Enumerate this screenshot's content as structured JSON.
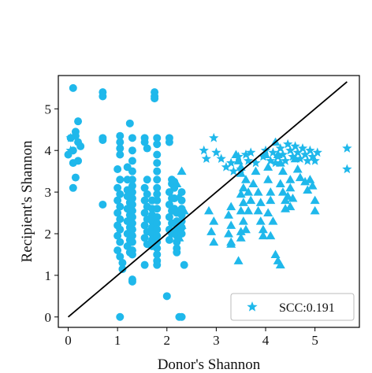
{
  "chart_data": {
    "type": "scatter",
    "xlabel": "Donor's Shannon",
    "ylabel": "Recipient's Shannon",
    "xlim": [
      -0.2,
      5.9
    ],
    "ylim": [
      -0.25,
      5.8
    ],
    "xticks": [
      0,
      1,
      2,
      3,
      4,
      5
    ],
    "yticks": [
      0,
      1,
      2,
      3,
      4,
      5
    ],
    "legend": {
      "label": "SCC:0.191",
      "marker": "star",
      "placement": "bottom-right"
    },
    "fit_line": {
      "x": [
        0,
        5.65
      ],
      "y": [
        0,
        5.65
      ],
      "color": "#000000"
    },
    "color": "#1fb8eb",
    "series": [
      {
        "marker": "circle",
        "points": [
          [
            0.1,
            5.5
          ],
          [
            0.1,
            3.1
          ],
          [
            0.15,
            3.35
          ],
          [
            0.2,
            4.7
          ],
          [
            0.15,
            4.45
          ],
          [
            0.05,
            4.3
          ],
          [
            0.2,
            4.2
          ],
          [
            0.1,
            4.0
          ],
          [
            0.0,
            3.9
          ],
          [
            0.2,
            3.75
          ],
          [
            0.15,
            4.35
          ],
          [
            0.25,
            4.1
          ],
          [
            0.1,
            3.7
          ],
          [
            0.7,
            5.4
          ],
          [
            0.7,
            5.3
          ],
          [
            0.7,
            4.3
          ],
          [
            0.7,
            4.25
          ],
          [
            0.7,
            2.7
          ],
          [
            1.05,
            4.35
          ],
          [
            1.05,
            4.2
          ],
          [
            1.05,
            4.05
          ],
          [
            1.05,
            3.9
          ],
          [
            1.0,
            3.55
          ],
          [
            1.05,
            3.3
          ],
          [
            1.0,
            3.1
          ],
          [
            1.05,
            2.95
          ],
          [
            1.0,
            2.8
          ],
          [
            1.05,
            2.65
          ],
          [
            1.0,
            2.5
          ],
          [
            1.05,
            2.35
          ],
          [
            1.0,
            2.2
          ],
          [
            1.05,
            2.1
          ],
          [
            1.0,
            1.95
          ],
          [
            1.05,
            1.8
          ],
          [
            1.0,
            1.6
          ],
          [
            1.05,
            1.45
          ],
          [
            1.1,
            1.3
          ],
          [
            1.1,
            1.15
          ],
          [
            1.05,
            0.0
          ],
          [
            1.2,
            3.6
          ],
          [
            1.2,
            3.3
          ],
          [
            1.2,
            3.05
          ],
          [
            1.2,
            2.9
          ],
          [
            1.25,
            2.75
          ],
          [
            1.2,
            2.6
          ],
          [
            1.25,
            2.45
          ],
          [
            1.2,
            2.3
          ],
          [
            1.25,
            2.15
          ],
          [
            1.2,
            2.0
          ],
          [
            1.25,
            1.85
          ],
          [
            1.2,
            1.7
          ],
          [
            1.25,
            1.55
          ],
          [
            1.25,
            4.65
          ],
          [
            1.3,
            4.3
          ],
          [
            1.3,
            4.0
          ],
          [
            1.3,
            3.75
          ],
          [
            1.3,
            3.5
          ],
          [
            1.3,
            3.3
          ],
          [
            1.3,
            3.15
          ],
          [
            1.3,
            3.0
          ],
          [
            1.3,
            2.85
          ],
          [
            1.3,
            2.7
          ],
          [
            1.3,
            2.55
          ],
          [
            1.3,
            2.4
          ],
          [
            1.3,
            2.25
          ],
          [
            1.3,
            2.1
          ],
          [
            1.3,
            1.95
          ],
          [
            1.3,
            1.8
          ],
          [
            1.3,
            1.6
          ],
          [
            1.3,
            1.5
          ],
          [
            1.3,
            0.9
          ],
          [
            1.3,
            0.85
          ],
          [
            1.55,
            4.3
          ],
          [
            1.55,
            4.2
          ],
          [
            1.6,
            4.05
          ],
          [
            1.6,
            3.3
          ],
          [
            1.55,
            3.1
          ],
          [
            1.6,
            2.95
          ],
          [
            1.55,
            2.8
          ],
          [
            1.6,
            2.65
          ],
          [
            1.55,
            2.5
          ],
          [
            1.6,
            2.35
          ],
          [
            1.55,
            2.2
          ],
          [
            1.6,
            2.05
          ],
          [
            1.55,
            1.9
          ],
          [
            1.6,
            1.75
          ],
          [
            1.55,
            1.25
          ],
          [
            1.7,
            2.8
          ],
          [
            1.7,
            2.6
          ],
          [
            1.7,
            2.45
          ],
          [
            1.7,
            2.3
          ],
          [
            1.7,
            2.15
          ],
          [
            1.7,
            2.0
          ],
          [
            1.7,
            1.85
          ],
          [
            1.7,
            1.7
          ],
          [
            1.75,
            5.4
          ],
          [
            1.75,
            5.3
          ],
          [
            1.75,
            5.25
          ],
          [
            1.8,
            4.3
          ],
          [
            1.8,
            4.15
          ],
          [
            1.8,
            3.9
          ],
          [
            1.8,
            3.7
          ],
          [
            1.8,
            3.5
          ],
          [
            1.8,
            3.3
          ],
          [
            1.8,
            3.1
          ],
          [
            1.8,
            2.95
          ],
          [
            1.8,
            2.8
          ],
          [
            1.8,
            2.6
          ],
          [
            1.8,
            2.4
          ],
          [
            1.8,
            2.25
          ],
          [
            1.8,
            2.1
          ],
          [
            1.8,
            1.95
          ],
          [
            1.8,
            1.8
          ],
          [
            1.8,
            1.65
          ],
          [
            1.8,
            1.5
          ],
          [
            1.8,
            1.35
          ],
          [
            1.8,
            1.25
          ],
          [
            2.05,
            4.3
          ],
          [
            2.05,
            4.2
          ],
          [
            2.1,
            3.3
          ],
          [
            2.1,
            3.2
          ],
          [
            2.05,
            3.0
          ],
          [
            2.1,
            2.85
          ],
          [
            2.05,
            2.7
          ],
          [
            2.1,
            2.55
          ],
          [
            2.05,
            2.4
          ],
          [
            2.1,
            2.25
          ],
          [
            2.05,
            2.1
          ],
          [
            2.1,
            2.0
          ],
          [
            2.05,
            1.85
          ],
          [
            2.15,
            3.25
          ],
          [
            2.15,
            3.1
          ],
          [
            2.15,
            2.85
          ],
          [
            2.15,
            2.6
          ],
          [
            2.2,
            2.5
          ],
          [
            2.2,
            2.3
          ],
          [
            2.2,
            2.2
          ],
          [
            2.2,
            2.1
          ],
          [
            2.2,
            1.95
          ],
          [
            2.2,
            1.8
          ],
          [
            2.2,
            1.65
          ],
          [
            2.2,
            1.55
          ],
          [
            2.3,
            3.0
          ],
          [
            2.3,
            2.8
          ],
          [
            2.3,
            2.6
          ],
          [
            2.3,
            2.45
          ],
          [
            2.3,
            2.3
          ],
          [
            2.3,
            2.15
          ],
          [
            2.3,
            2.0
          ],
          [
            2.35,
            1.25
          ],
          [
            2.25,
            0.0
          ],
          [
            2.3,
            0.0
          ],
          [
            2.0,
            0.5
          ]
        ]
      },
      {
        "marker": "triangle",
        "points": [
          [
            2.3,
            3.5
          ],
          [
            2.2,
            3.2
          ],
          [
            2.25,
            2.9
          ],
          [
            2.35,
            2.55
          ],
          [
            2.3,
            2.2
          ],
          [
            2.25,
            1.9
          ],
          [
            2.85,
            2.55
          ],
          [
            2.95,
            2.3
          ],
          [
            2.9,
            2.05
          ],
          [
            2.95,
            1.8
          ],
          [
            3.3,
            2.65
          ],
          [
            3.25,
            2.45
          ],
          [
            3.3,
            2.2
          ],
          [
            3.25,
            2.0
          ],
          [
            3.3,
            1.8
          ],
          [
            3.3,
            1.75
          ],
          [
            3.4,
            3.9
          ],
          [
            3.45,
            3.75
          ],
          [
            3.5,
            3.6
          ],
          [
            3.5,
            3.45
          ],
          [
            3.55,
            3.1
          ],
          [
            3.5,
            2.95
          ],
          [
            3.55,
            2.75
          ],
          [
            3.5,
            2.55
          ],
          [
            3.55,
            2.3
          ],
          [
            3.5,
            2.05
          ],
          [
            3.5,
            1.9
          ],
          [
            3.45,
            1.35
          ],
          [
            3.6,
            3.3
          ],
          [
            3.65,
            3.0
          ],
          [
            3.7,
            2.8
          ],
          [
            3.65,
            2.55
          ],
          [
            3.6,
            2.1
          ],
          [
            3.8,
            3.5
          ],
          [
            3.75,
            3.2
          ],
          [
            3.85,
            3.0
          ],
          [
            3.9,
            2.75
          ],
          [
            3.85,
            2.55
          ],
          [
            3.9,
            2.3
          ],
          [
            3.95,
            2.1
          ],
          [
            3.95,
            1.95
          ],
          [
            4.0,
            3.9
          ],
          [
            4.05,
            3.6
          ],
          [
            4.05,
            3.3
          ],
          [
            4.1,
            3.0
          ],
          [
            4.1,
            2.8
          ],
          [
            4.05,
            2.5
          ],
          [
            4.15,
            2.3
          ],
          [
            4.1,
            1.95
          ],
          [
            4.2,
            1.5
          ],
          [
            4.25,
            1.35
          ],
          [
            4.3,
            1.25
          ],
          [
            4.2,
            4.2
          ],
          [
            4.25,
            3.9
          ],
          [
            4.3,
            3.7
          ],
          [
            4.35,
            3.5
          ],
          [
            4.3,
            3.2
          ],
          [
            4.35,
            3.0
          ],
          [
            4.4,
            2.8
          ],
          [
            4.4,
            2.6
          ],
          [
            4.45,
            2.9
          ],
          [
            4.5,
            3.3
          ],
          [
            4.5,
            3.1
          ],
          [
            4.55,
            2.85
          ],
          [
            4.5,
            2.65
          ],
          [
            4.6,
            3.8
          ],
          [
            4.65,
            3.55
          ],
          [
            4.7,
            3.35
          ],
          [
            4.8,
            3.25
          ],
          [
            4.85,
            3.05
          ],
          [
            4.9,
            3.3
          ],
          [
            4.95,
            3.15
          ],
          [
            5.0,
            2.8
          ],
          [
            5.0,
            2.55
          ],
          [
            4.25,
            0.02
          ]
        ]
      },
      {
        "marker": "star",
        "points": [
          [
            2.75,
            4.0
          ],
          [
            2.8,
            3.8
          ],
          [
            2.95,
            4.3
          ],
          [
            3.0,
            3.95
          ],
          [
            3.1,
            3.8
          ],
          [
            3.2,
            3.6
          ],
          [
            3.3,
            3.7
          ],
          [
            3.35,
            3.5
          ],
          [
            3.45,
            3.85
          ],
          [
            3.6,
            3.9
          ],
          [
            3.65,
            3.75
          ],
          [
            3.5,
            3.55
          ],
          [
            3.7,
            3.95
          ],
          [
            3.8,
            3.7
          ],
          [
            3.95,
            3.85
          ],
          [
            4.0,
            4.0
          ],
          [
            4.1,
            3.75
          ],
          [
            4.15,
            3.95
          ],
          [
            4.2,
            3.7
          ],
          [
            4.25,
            3.85
          ],
          [
            4.3,
            4.05
          ],
          [
            4.35,
            3.9
          ],
          [
            4.4,
            3.75
          ],
          [
            4.45,
            4.15
          ],
          [
            4.5,
            4.0
          ],
          [
            4.55,
            3.85
          ],
          [
            4.6,
            4.1
          ],
          [
            4.65,
            3.95
          ],
          [
            4.7,
            3.8
          ],
          [
            4.75,
            4.05
          ],
          [
            4.8,
            3.9
          ],
          [
            4.85,
            3.75
          ],
          [
            4.9,
            4.0
          ],
          [
            4.95,
            3.85
          ],
          [
            5.0,
            3.75
          ],
          [
            5.05,
            3.95
          ],
          [
            5.65,
            4.05
          ],
          [
            5.65,
            3.55
          ],
          [
            0.05,
            4.3
          ],
          [
            0.05,
            4.0
          ]
        ]
      }
    ]
  }
}
